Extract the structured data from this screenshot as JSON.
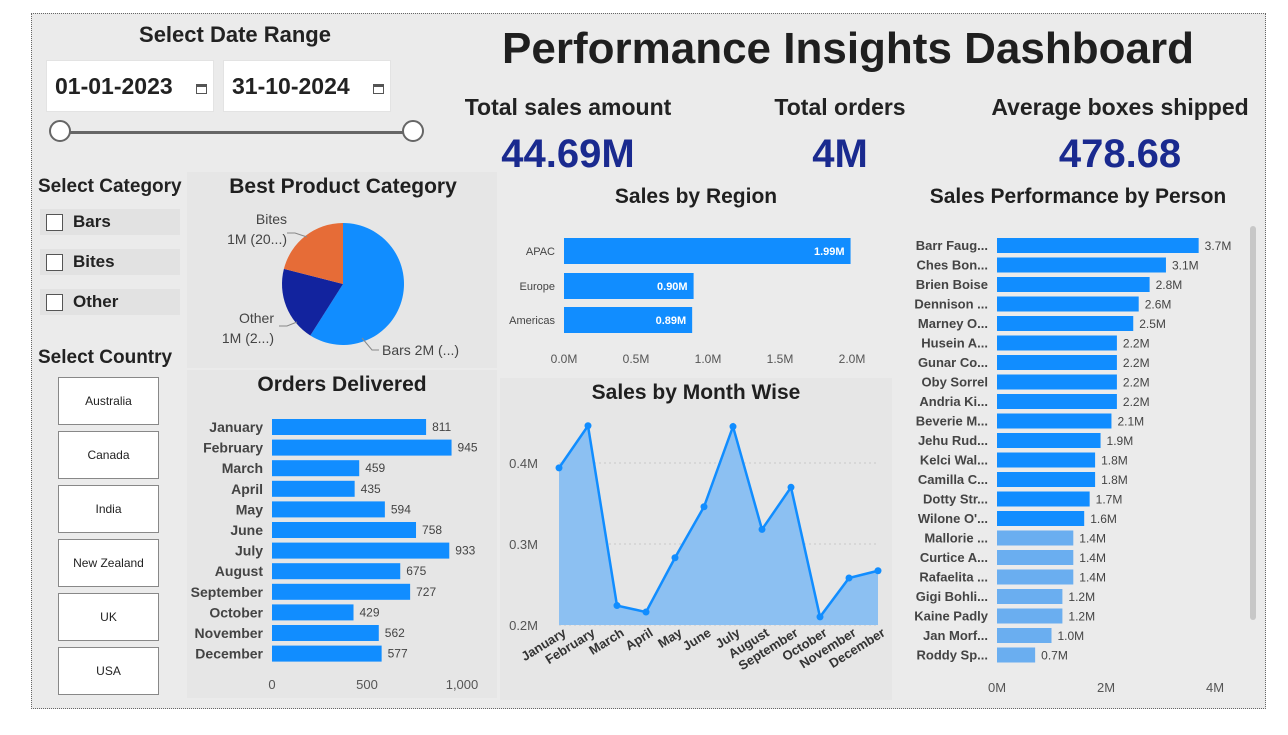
{
  "title": "Performance Insights Dashboard",
  "date_range": {
    "label": "Select Date Range",
    "start": "01-01-2023",
    "end": "31-10-2024"
  },
  "category_filter": {
    "label": "Select Category",
    "items": [
      "Bars",
      "Bites",
      "Other"
    ]
  },
  "country_filter": {
    "label": "Select Country",
    "items": [
      "Australia",
      "Canada",
      "India",
      "New Zealand",
      "UK",
      "USA"
    ]
  },
  "kpis": {
    "total_sales": {
      "label": "Total sales amount",
      "value": "44.69M"
    },
    "total_orders": {
      "label": "Total orders",
      "value": "4M"
    },
    "avg_boxes": {
      "label": "Average boxes shipped",
      "value": "478.68"
    }
  },
  "colors": {
    "bar_blue": "#118dff",
    "bar_light": "#6aaef0",
    "area_fill": "#8cc0f2",
    "pie_orange": "#e66c37",
    "pie_navy": "#12239e",
    "kpi_blue": "#1a2a8f"
  },
  "chart_data": [
    {
      "type": "pie",
      "title": "Best Product Category",
      "labels": [
        "Bars",
        "Other",
        "Bites"
      ],
      "values": [
        2,
        1,
        1
      ],
      "shares": [
        0.59,
        0.2,
        0.21
      ],
      "data_labels": [
        "Bars 2M (...)",
        "Other\n1M (2...)",
        "Bites\n1M (20...)"
      ]
    },
    {
      "type": "bar",
      "title": "Sales by Region",
      "orientation": "horizontal",
      "categories": [
        "APAC",
        "Europe",
        "Americas"
      ],
      "values": [
        1.99,
        0.9,
        0.89
      ],
      "value_labels": [
        "1.99M",
        "0.90M",
        "0.89M"
      ],
      "xlim": [
        0,
        2.0
      ],
      "xticks": [
        "0.0M",
        "0.5M",
        "1.0M",
        "1.5M",
        "2.0M"
      ]
    },
    {
      "type": "bar",
      "title": "Orders Delivered",
      "orientation": "horizontal",
      "categories": [
        "January",
        "February",
        "March",
        "April",
        "May",
        "June",
        "July",
        "August",
        "September",
        "October",
        "November",
        "December"
      ],
      "values": [
        811,
        945,
        459,
        435,
        594,
        758,
        933,
        675,
        727,
        429,
        562,
        577
      ],
      "xlim": [
        0,
        1000
      ],
      "xticks": [
        "0",
        "500",
        "1,000"
      ]
    },
    {
      "type": "area",
      "title": "Sales by Month Wise",
      "categories": [
        "January",
        "February",
        "March",
        "April",
        "May",
        "June",
        "July",
        "August",
        "September",
        "October",
        "November",
        "December"
      ],
      "values": [
        0.394,
        0.446,
        0.224,
        0.216,
        0.283,
        0.346,
        0.445,
        0.318,
        0.37,
        0.21,
        0.258,
        0.267
      ],
      "ylim": [
        0.2,
        0.45
      ],
      "yticks": [
        "0.2M",
        "0.3M",
        "0.4M"
      ]
    },
    {
      "type": "bar",
      "title": "Sales Performance by Person",
      "orientation": "horizontal",
      "categories": [
        "Barr Faug...",
        "Ches Bon...",
        "Brien Boise",
        "Dennison ...",
        "Marney O...",
        "Husein A...",
        "Gunar Co...",
        "Oby Sorrel",
        "Andria Ki...",
        "Beverie M...",
        "Jehu Rud...",
        "Kelci Wal...",
        "Camilla C...",
        "Dotty Str...",
        "Wilone O'...",
        "Mallorie ...",
        "Curtice A...",
        "Rafaelita ...",
        "Gigi Bohli...",
        "Kaine Padly",
        "Jan Morf...",
        "Roddy Sp..."
      ],
      "values": [
        3.7,
        3.1,
        2.8,
        2.6,
        2.5,
        2.2,
        2.2,
        2.2,
        2.2,
        2.1,
        1.9,
        1.8,
        1.8,
        1.7,
        1.6,
        1.4,
        1.4,
        1.4,
        1.2,
        1.2,
        1.0,
        0.7
      ],
      "value_labels": [
        "3.7M",
        "3.1M",
        "2.8M",
        "2.6M",
        "2.5M",
        "2.2M",
        "2.2M",
        "2.2M",
        "2.2M",
        "2.1M",
        "1.9M",
        "1.8M",
        "1.8M",
        "1.7M",
        "1.6M",
        "1.4M",
        "1.4M",
        "1.4M",
        "1.2M",
        "1.2M",
        "1.0M",
        "0.7M"
      ],
      "xlim": [
        0,
        4
      ],
      "xticks": [
        "0M",
        "2M",
        "4M"
      ]
    }
  ]
}
